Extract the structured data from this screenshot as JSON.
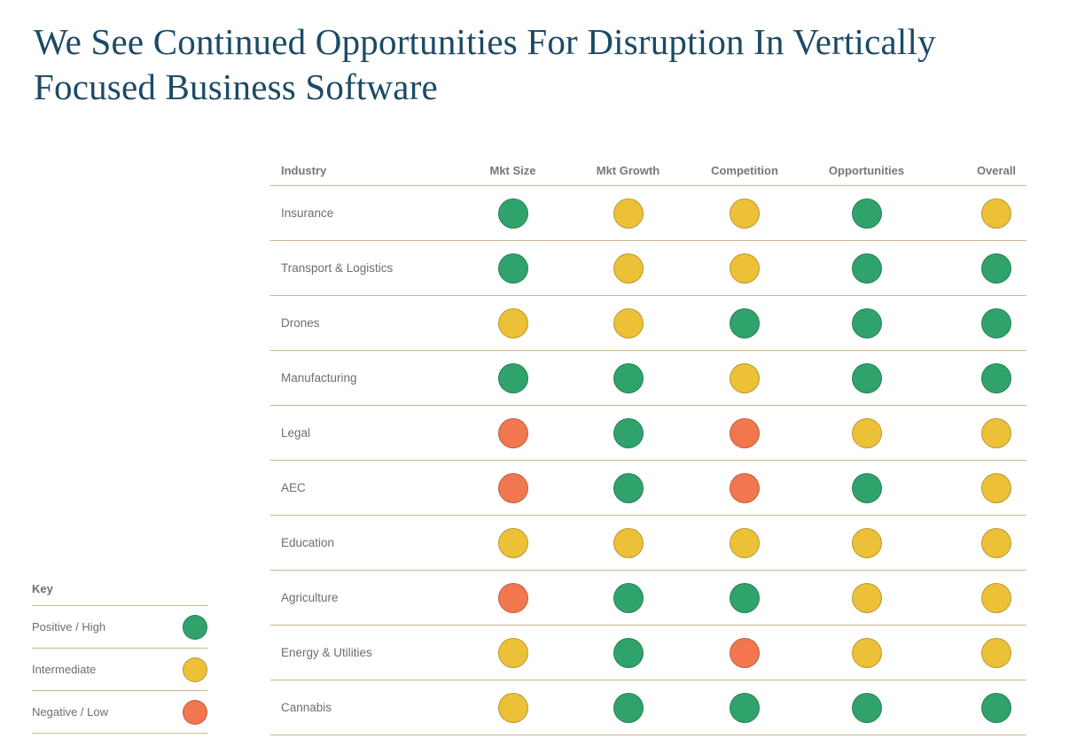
{
  "chart_data": {
    "type": "table",
    "title": "We See Continued Opportunities For Disruption In Vertically Focused Business Software",
    "columns": [
      "Industry",
      "Mkt Size",
      "Mkt Growth",
      "Competition",
      "Opportunities",
      "Overall"
    ],
    "rows": [
      [
        "Insurance",
        "positive",
        "intermediate",
        "intermediate",
        "positive",
        "intermediate"
      ],
      [
        "Transport & Logistics",
        "positive",
        "intermediate",
        "intermediate",
        "positive",
        "positive"
      ],
      [
        "Drones",
        "intermediate",
        "intermediate",
        "positive",
        "positive",
        "positive"
      ],
      [
        "Manufacturing",
        "positive",
        "positive",
        "intermediate",
        "positive",
        "positive"
      ],
      [
        "Legal",
        "negative",
        "positive",
        "negative",
        "intermediate",
        "intermediate"
      ],
      [
        "AEC",
        "negative",
        "positive",
        "negative",
        "positive",
        "intermediate"
      ],
      [
        "Education",
        "intermediate",
        "intermediate",
        "intermediate",
        "intermediate",
        "intermediate"
      ],
      [
        "Agriculture",
        "negative",
        "positive",
        "positive",
        "intermediate",
        "intermediate"
      ],
      [
        "Energy & Utilities",
        "intermediate",
        "positive",
        "negative",
        "intermediate",
        "intermediate"
      ],
      [
        "Cannabis",
        "intermediate",
        "positive",
        "positive",
        "positive",
        "positive"
      ]
    ],
    "legend_position": "bottom-left"
  },
  "key": {
    "title": "Key",
    "items": [
      {
        "label": "Positive / High",
        "rating": "positive"
      },
      {
        "label": "Intermediate",
        "rating": "intermediate"
      },
      {
        "label": "Negative / Low",
        "rating": "negative"
      }
    ]
  },
  "colors": {
    "positive": "#2fa36b",
    "intermediate": "#ecc138",
    "negative": "#f2774f",
    "title_text": "#1b4a66",
    "divider": "#cdb691",
    "header_text": "#7b7672",
    "label_text": "#716d6a"
  }
}
